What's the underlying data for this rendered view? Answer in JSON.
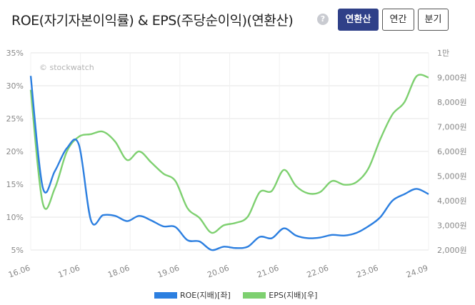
{
  "header": {
    "title": "ROE(자기자본이익률) & EPS(주당순이익)(연환산)",
    "help_icon": "question-icon",
    "buttons": [
      {
        "label": "연환산",
        "active": true
      },
      {
        "label": "연간",
        "active": false
      },
      {
        "label": "분기",
        "active": false
      }
    ]
  },
  "watermark": "© stockwatch",
  "colors": {
    "roe": "#2c7fe0",
    "eps": "#7ed070",
    "grid": "#e6e6e6",
    "axis_text": "#888888"
  },
  "chart_data": {
    "type": "line",
    "x_tick_labels": [
      "16.06",
      "17.06",
      "18.06",
      "19.06",
      "20.06",
      "21.06",
      "22.06",
      "23.06",
      "24.09"
    ],
    "x_range": [
      2016.5,
      2024.75
    ],
    "y_left": {
      "min": 5,
      "max": 35,
      "ticks": [
        35,
        30,
        25,
        20,
        15,
        10,
        5
      ],
      "tick_labels": [
        "35%",
        "30%",
        "25%",
        "20%",
        "15%",
        "10%",
        "5%"
      ]
    },
    "y_right": {
      "min": 2000,
      "max": 10000,
      "ticks": [
        10000,
        9000,
        8000,
        7000,
        6000,
        5000,
        4000,
        3000,
        2000
      ],
      "tick_labels": [
        "1만",
        "9,000원",
        "8,000원",
        "7,000원",
        "6,000원",
        "5,000원",
        "4,000원",
        "3,000원",
        "2,000원"
      ]
    },
    "series": [
      {
        "name": "ROE(지배)[좌]",
        "axis": "left",
        "x": [
          2016.5,
          2016.75,
          2017.0,
          2017.25,
          2017.5,
          2017.75,
          2018.0,
          2018.25,
          2018.5,
          2018.75,
          2019.0,
          2019.25,
          2019.5,
          2019.75,
          2020.0,
          2020.25,
          2020.5,
          2020.75,
          2021.0,
          2021.25,
          2021.5,
          2021.75,
          2022.0,
          2022.25,
          2022.5,
          2022.75,
          2023.0,
          2023.25,
          2023.5,
          2023.75,
          2024.0,
          2024.25,
          2024.5,
          2024.75
        ],
        "values": [
          31.5,
          14.5,
          17,
          20.5,
          21,
          9.5,
          10.3,
          10.2,
          9.4,
          10.2,
          9.5,
          8.6,
          8.5,
          6.5,
          6.3,
          5.0,
          5.5,
          5.3,
          5.5,
          7.0,
          6.8,
          8.3,
          7.2,
          6.8,
          6.9,
          7.3,
          7.2,
          7.6,
          8.6,
          10.0,
          12.5,
          13.5,
          14.3,
          13.5
        ]
      },
      {
        "name": "EPS(지배)[우]",
        "axis": "right",
        "x": [
          2016.5,
          2016.75,
          2017.0,
          2017.25,
          2017.5,
          2017.75,
          2018.0,
          2018.25,
          2018.5,
          2018.75,
          2019.0,
          2019.25,
          2019.5,
          2019.75,
          2020.0,
          2020.25,
          2020.5,
          2020.75,
          2021.0,
          2021.25,
          2021.5,
          2021.75,
          2022.0,
          2022.25,
          2022.5,
          2022.75,
          2023.0,
          2023.25,
          2023.5,
          2023.75,
          2024.0,
          2024.25,
          2024.5,
          2024.75
        ],
        "values": [
          8500,
          3900,
          4500,
          6000,
          6600,
          6700,
          6800,
          6400,
          5650,
          6000,
          5550,
          5100,
          4800,
          3700,
          3300,
          2700,
          3000,
          3100,
          3350,
          4350,
          4400,
          5250,
          4600,
          4300,
          4350,
          4800,
          4650,
          4750,
          5300,
          6500,
          7500,
          8000,
          9050,
          9000
        ]
      }
    ],
    "legend_position": "bottom",
    "grid": true
  }
}
